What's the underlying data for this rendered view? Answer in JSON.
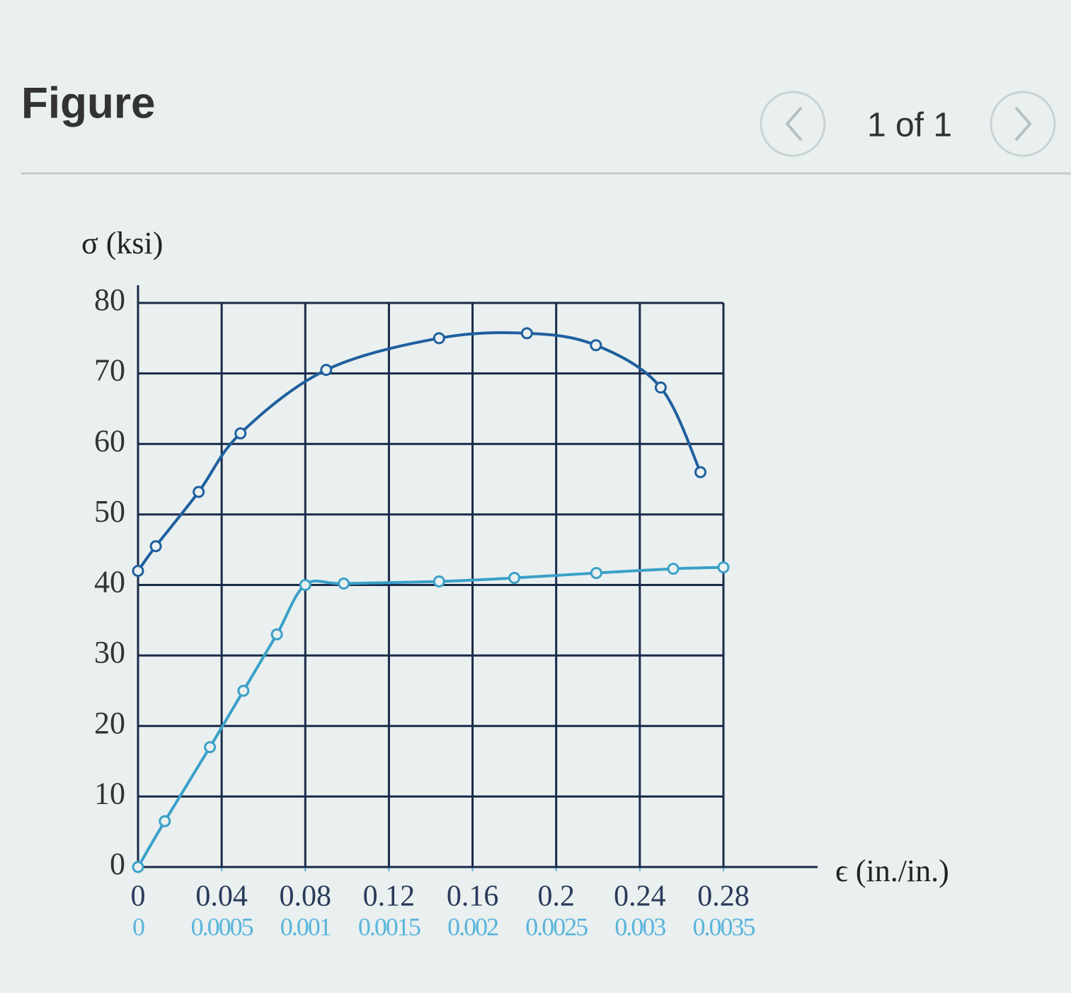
{
  "header": {
    "title": "Figure",
    "pager": "1 of 1"
  },
  "chart_data": {
    "type": "line",
    "ylabel": "σ (ksi)",
    "xlabel": "ϵ (in./in.)",
    "ylim": [
      0,
      80
    ],
    "yticks": [
      0,
      10,
      20,
      30,
      40,
      50,
      60,
      70,
      80
    ],
    "xlim": [
      0,
      0.28
    ],
    "xticks": [
      0,
      0.04,
      0.08,
      0.12,
      0.16,
      0.2,
      0.24,
      0.28
    ],
    "x2lim": [
      0,
      0.0035
    ],
    "x2ticks": [
      0,
      0.0005,
      0.001,
      0.0015,
      0.002,
      0.0025,
      0.003,
      0.0035
    ],
    "grid": true,
    "series": [
      {
        "color": "#1f5f9e",
        "axis": "x",
        "x": [
          0,
          0.0085,
          0.029,
          0.049,
          0.09,
          0.144,
          0.186,
          0.219,
          0.25,
          0.269
        ],
        "values": [
          42,
          45.5,
          53.2,
          61.5,
          70.5,
          75,
          75.7,
          74,
          68,
          56
        ]
      },
      {
        "color": "#3aa0c8",
        "axis": "x2",
        "x": [
          0,
          0.00016,
          0.00043,
          0.00063,
          0.00083,
          0.001,
          0.00123,
          0.0018,
          0.00225,
          0.00274,
          0.0032,
          0.0035
        ],
        "values": [
          0,
          6.5,
          17,
          25,
          33,
          40,
          40.2,
          40.5,
          41,
          41.7,
          42.3,
          42.5
        ]
      }
    ]
  }
}
